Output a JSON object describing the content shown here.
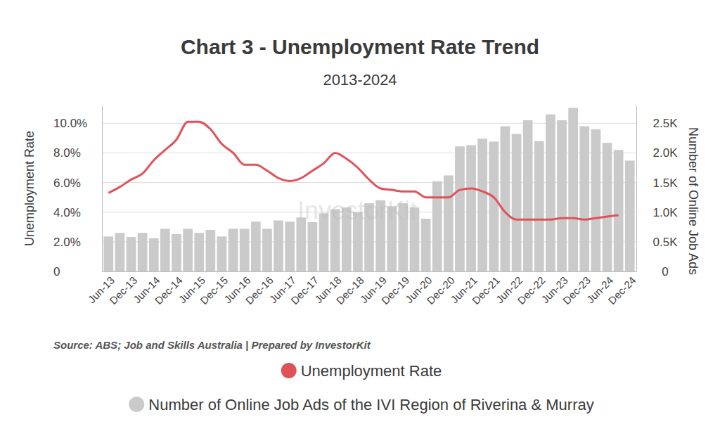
{
  "chart_data": {
    "type": "bar",
    "title": "Chart 3 - Unemployment Rate Trend",
    "subtitle": "2013-2024",
    "source": "Source: ABS; Job and Skills Australia | Prepared by InvestorKit",
    "watermark": "InvestorKit",
    "y_label": "Unemployment Rate",
    "y2_label": "Number of Online Job Ads",
    "categories": [
      "Jun-13",
      null,
      "Dec-13",
      null,
      "Jun-14",
      null,
      "Dec-14",
      null,
      "Jun-15",
      null,
      "Dec-15",
      null,
      "Jun-16",
      null,
      "Dec-16",
      null,
      "Jun-17",
      null,
      "Dec-17",
      null,
      "Jun-18",
      null,
      "Dec-18",
      null,
      "Jun-19",
      null,
      "Dec-19",
      null,
      "Jun-20",
      null,
      "Dec-20",
      null,
      "Jun-21",
      null,
      "Dec-21",
      null,
      "Jun-22",
      null,
      "Dec-22",
      null,
      "Jun-23",
      null,
      "Dec-23",
      null,
      "Jun-24",
      null,
      "Dec-24"
    ],
    "series": [
      {
        "name": "Unemployment Rate",
        "type": "line",
        "color": "#e0525a",
        "marker": "none",
        "line_style": "solid",
        "axis": "y",
        "values": [
          5.3,
          5.7,
          6.2,
          6.6,
          7.5,
          8.2,
          8.9,
          10.1,
          10.1,
          9.6,
          8.6,
          8.0,
          7.2,
          7.2,
          6.8,
          6.3,
          6.1,
          6.3,
          6.8,
          7.3,
          8.0,
          7.6,
          7.0,
          6.2,
          5.6,
          5.5,
          5.4,
          5.4,
          5.0,
          5.0,
          5.0,
          5.5,
          5.6,
          5.4,
          5.0,
          4.0,
          3.5,
          3.5,
          3.5,
          3.5,
          3.6,
          3.6,
          3.5,
          3.6,
          3.7,
          3.8,
          null
        ]
      },
      {
        "name": "Number of Online Job Ads of the IVI Region of Riverina & Murray",
        "type": "bar",
        "color": "#cacaca",
        "axis": "y2",
        "values": [
          590,
          650,
          580,
          650,
          560,
          720,
          630,
          720,
          650,
          700,
          590,
          720,
          720,
          840,
          720,
          860,
          840,
          910,
          830,
          980,
          1050,
          1080,
          1000,
          1150,
          1200,
          1100,
          1150,
          1080,
          890,
          1520,
          1620,
          2110,
          2130,
          2240,
          2190,
          2450,
          2320,
          2550,
          2200,
          2650,
          2550,
          2760,
          2450,
          2400,
          2170,
          2050,
          1870
        ]
      }
    ],
    "ylim": [
      0,
      11.2
    ],
    "yticks": [
      0,
      {
        "value": 2,
        "label": "2.0%"
      },
      {
        "value": 4,
        "label": "4.0%"
      },
      {
        "value": 6,
        "label": "6.0%"
      },
      {
        "value": 8,
        "label": "8.0%"
      },
      {
        "value": 10,
        "label": "10.0%"
      }
    ],
    "y2lim": [
      0,
      2800
    ],
    "y2ticks": [
      0,
      {
        "value": 500,
        "label": "0.5K"
      },
      {
        "value": 1000,
        "label": "1.0K"
      },
      {
        "value": 1500,
        "label": "1.5K"
      },
      {
        "value": 2000,
        "label": "2.0K"
      },
      {
        "value": 2500,
        "label": "2.5K"
      }
    ],
    "grid": true,
    "legend": "bottom"
  }
}
